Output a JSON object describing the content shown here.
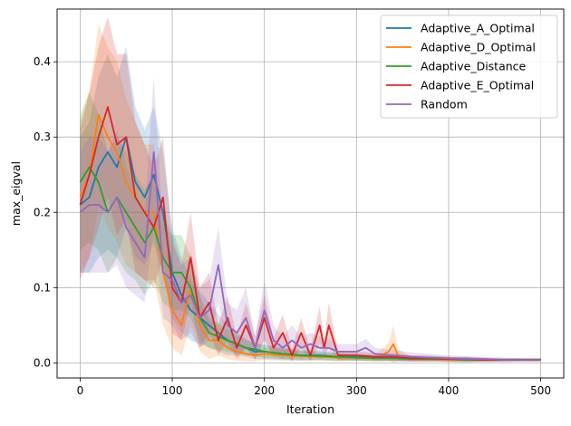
{
  "chart_data": {
    "type": "line",
    "title": "",
    "xlabel": "Iteration",
    "ylabel": "max_eigval",
    "xlim": [
      -25,
      525
    ],
    "ylim": [
      -0.02,
      0.47
    ],
    "xticks": [
      0,
      100,
      200,
      300,
      400,
      500
    ],
    "xtick_labels": [
      "0",
      "100",
      "200",
      "300",
      "400",
      "500"
    ],
    "yticks": [
      0.0,
      0.1,
      0.2,
      0.3,
      0.4
    ],
    "ytick_labels": [
      "0.0",
      "0.1",
      "0.2",
      "0.3",
      "0.4"
    ],
    "grid": true,
    "legend_position": "top-right",
    "series": [
      {
        "name": "Adaptive_A_Optimal",
        "color": "#1f77b4",
        "x": [
          0,
          10,
          20,
          30,
          40,
          50,
          60,
          70,
          80,
          90,
          100,
          110,
          120,
          130,
          140,
          150,
          160,
          170,
          180,
          190,
          200,
          220,
          240,
          260,
          280,
          300,
          320,
          340,
          360,
          380,
          400,
          420,
          440,
          460,
          480,
          500
        ],
        "y": [
          0.21,
          0.22,
          0.26,
          0.28,
          0.26,
          0.3,
          0.24,
          0.22,
          0.25,
          0.2,
          0.12,
          0.09,
          0.07,
          0.06,
          0.05,
          0.04,
          0.03,
          0.025,
          0.02,
          0.015,
          0.015,
          0.012,
          0.01,
          0.01,
          0.008,
          0.008,
          0.007,
          0.007,
          0.006,
          0.006,
          0.005,
          0.005,
          0.004,
          0.004,
          0.004,
          0.004
        ],
        "band": [
          0.09,
          0.1,
          0.12,
          0.13,
          0.12,
          0.12,
          0.1,
          0.09,
          0.09,
          0.08,
          0.06,
          0.05,
          0.04,
          0.035,
          0.03,
          0.025,
          0.02,
          0.015,
          0.012,
          0.01,
          0.01,
          0.008,
          0.007,
          0.006,
          0.005,
          0.005,
          0.004,
          0.004,
          0.004,
          0.003,
          0.003,
          0.003,
          0.002,
          0.002,
          0.002,
          0.002
        ]
      },
      {
        "name": "Adaptive_D_Optimal",
        "color": "#ff7f0e",
        "x": [
          0,
          10,
          20,
          30,
          40,
          50,
          60,
          70,
          80,
          90,
          100,
          110,
          120,
          130,
          140,
          150,
          160,
          170,
          180,
          190,
          200,
          220,
          240,
          260,
          280,
          300,
          320,
          335,
          340,
          345,
          360,
          380,
          400,
          420,
          440,
          460,
          480,
          500
        ],
        "y": [
          0.22,
          0.25,
          0.33,
          0.3,
          0.28,
          0.24,
          0.22,
          0.2,
          0.2,
          0.12,
          0.07,
          0.05,
          0.1,
          0.05,
          0.03,
          0.03,
          0.02,
          0.015,
          0.012,
          0.01,
          0.012,
          0.01,
          0.009,
          0.008,
          0.007,
          0.007,
          0.006,
          0.015,
          0.025,
          0.01,
          0.005,
          0.005,
          0.004,
          0.004,
          0.004,
          0.004,
          0.004,
          0.004
        ],
        "band": [
          0.1,
          0.11,
          0.12,
          0.12,
          0.12,
          0.11,
          0.1,
          0.09,
          0.09,
          0.07,
          0.05,
          0.04,
          0.05,
          0.035,
          0.025,
          0.02,
          0.015,
          0.012,
          0.01,
          0.008,
          0.008,
          0.007,
          0.006,
          0.005,
          0.005,
          0.004,
          0.004,
          0.012,
          0.025,
          0.008,
          0.003,
          0.003,
          0.003,
          0.003,
          0.002,
          0.002,
          0.002,
          0.002
        ]
      },
      {
        "name": "Adaptive_Distance",
        "color": "#2ca02c",
        "x": [
          0,
          10,
          20,
          30,
          40,
          50,
          60,
          70,
          80,
          90,
          100,
          110,
          120,
          130,
          140,
          150,
          160,
          170,
          180,
          190,
          200,
          220,
          240,
          260,
          280,
          300,
          320,
          340,
          360,
          380,
          400,
          420,
          440,
          460,
          480,
          500
        ],
        "y": [
          0.24,
          0.26,
          0.24,
          0.2,
          0.22,
          0.2,
          0.18,
          0.16,
          0.18,
          0.14,
          0.12,
          0.12,
          0.1,
          0.06,
          0.04,
          0.035,
          0.03,
          0.025,
          0.02,
          0.018,
          0.015,
          0.012,
          0.01,
          0.009,
          0.008,
          0.007,
          0.006,
          0.006,
          0.005,
          0.005,
          0.005,
          0.004,
          0.004,
          0.004,
          0.004,
          0.004
        ],
        "band": [
          0.09,
          0.1,
          0.09,
          0.08,
          0.08,
          0.08,
          0.07,
          0.07,
          0.07,
          0.06,
          0.05,
          0.05,
          0.04,
          0.03,
          0.02,
          0.018,
          0.015,
          0.012,
          0.01,
          0.009,
          0.008,
          0.007,
          0.006,
          0.005,
          0.005,
          0.004,
          0.004,
          0.004,
          0.003,
          0.003,
          0.003,
          0.003,
          0.002,
          0.002,
          0.002,
          0.002
        ]
      },
      {
        "name": "Adaptive_E_Optimal",
        "color": "#d62728",
        "x": [
          0,
          10,
          20,
          30,
          40,
          50,
          60,
          70,
          80,
          90,
          100,
          110,
          120,
          130,
          140,
          150,
          160,
          170,
          180,
          190,
          200,
          210,
          220,
          230,
          240,
          250,
          260,
          265,
          270,
          280,
          300,
          320,
          340,
          360,
          380,
          400,
          420,
          440,
          460,
          480,
          500
        ],
        "y": [
          0.21,
          0.25,
          0.3,
          0.34,
          0.29,
          0.3,
          0.22,
          0.2,
          0.18,
          0.22,
          0.1,
          0.08,
          0.14,
          0.06,
          0.08,
          0.03,
          0.06,
          0.02,
          0.05,
          0.02,
          0.06,
          0.02,
          0.04,
          0.01,
          0.04,
          0.01,
          0.05,
          0.02,
          0.05,
          0.01,
          0.01,
          0.008,
          0.008,
          0.006,
          0.006,
          0.005,
          0.005,
          0.004,
          0.004,
          0.004,
          0.004
        ],
        "band": [
          0.1,
          0.11,
          0.12,
          0.12,
          0.12,
          0.11,
          0.1,
          0.09,
          0.08,
          0.08,
          0.06,
          0.05,
          0.06,
          0.04,
          0.04,
          0.02,
          0.03,
          0.015,
          0.03,
          0.015,
          0.03,
          0.012,
          0.025,
          0.008,
          0.02,
          0.008,
          0.025,
          0.01,
          0.03,
          0.006,
          0.006,
          0.005,
          0.005,
          0.004,
          0.004,
          0.003,
          0.003,
          0.003,
          0.002,
          0.002,
          0.002
        ]
      },
      {
        "name": "Random",
        "color": "#9467bd",
        "x": [
          0,
          10,
          20,
          30,
          40,
          50,
          60,
          70,
          80,
          90,
          100,
          110,
          120,
          130,
          140,
          150,
          160,
          170,
          180,
          190,
          200,
          210,
          220,
          230,
          240,
          250,
          260,
          270,
          280,
          300,
          310,
          320,
          340,
          360,
          380,
          400,
          420,
          440,
          460,
          480,
          500
        ],
        "y": [
          0.2,
          0.21,
          0.21,
          0.2,
          0.22,
          0.18,
          0.16,
          0.14,
          0.28,
          0.12,
          0.11,
          0.08,
          0.09,
          0.06,
          0.07,
          0.13,
          0.05,
          0.04,
          0.06,
          0.02,
          0.07,
          0.03,
          0.02,
          0.03,
          0.02,
          0.025,
          0.02,
          0.02,
          0.015,
          0.015,
          0.02,
          0.012,
          0.01,
          0.008,
          0.007,
          0.006,
          0.005,
          0.005,
          0.004,
          0.004,
          0.004
        ],
        "band": [
          0.08,
          0.09,
          0.09,
          0.08,
          0.09,
          0.08,
          0.07,
          0.06,
          0.1,
          0.06,
          0.06,
          0.05,
          0.05,
          0.04,
          0.04,
          0.05,
          0.03,
          0.03,
          0.04,
          0.015,
          0.04,
          0.02,
          0.015,
          0.02,
          0.015,
          0.015,
          0.015,
          0.012,
          0.01,
          0.01,
          0.012,
          0.008,
          0.007,
          0.006,
          0.005,
          0.004,
          0.004,
          0.003,
          0.003,
          0.002,
          0.002
        ]
      }
    ]
  }
}
